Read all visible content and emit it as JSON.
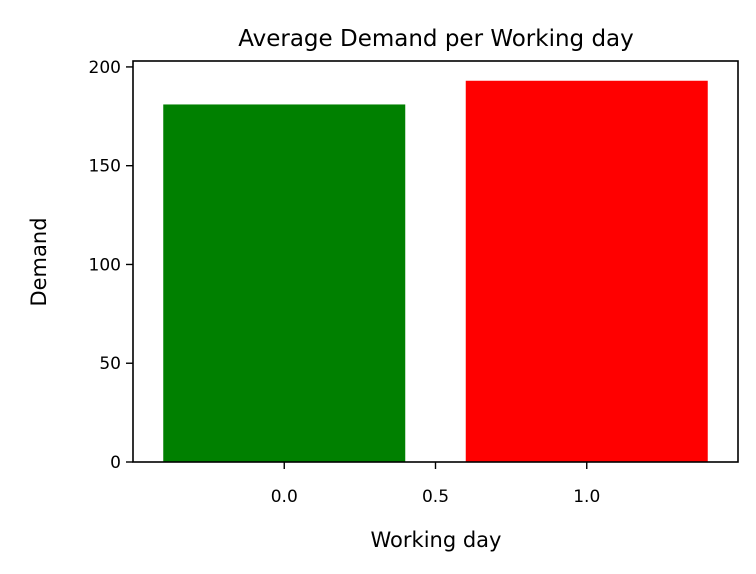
{
  "chart_data": {
    "type": "bar",
    "title": "Average Demand per Working day",
    "xlabel": "Working day",
    "ylabel": "Demand",
    "x": [
      0,
      1
    ],
    "values": [
      181,
      193
    ],
    "colors": [
      "#008000",
      "#ff0000"
    ],
    "bar_width": 0.8,
    "xlim": [
      -0.5,
      1.5
    ],
    "ylim": [
      0,
      203
    ],
    "xticks": [
      0.0,
      0.5,
      1.0
    ],
    "xtick_labels": [
      "0.0",
      "0.5",
      "1.0"
    ],
    "yticks": [
      0,
      50,
      100,
      150,
      200
    ],
    "ytick_labels": [
      "0",
      "50",
      "100",
      "150",
      "200"
    ],
    "grid": false,
    "legend": "none"
  }
}
